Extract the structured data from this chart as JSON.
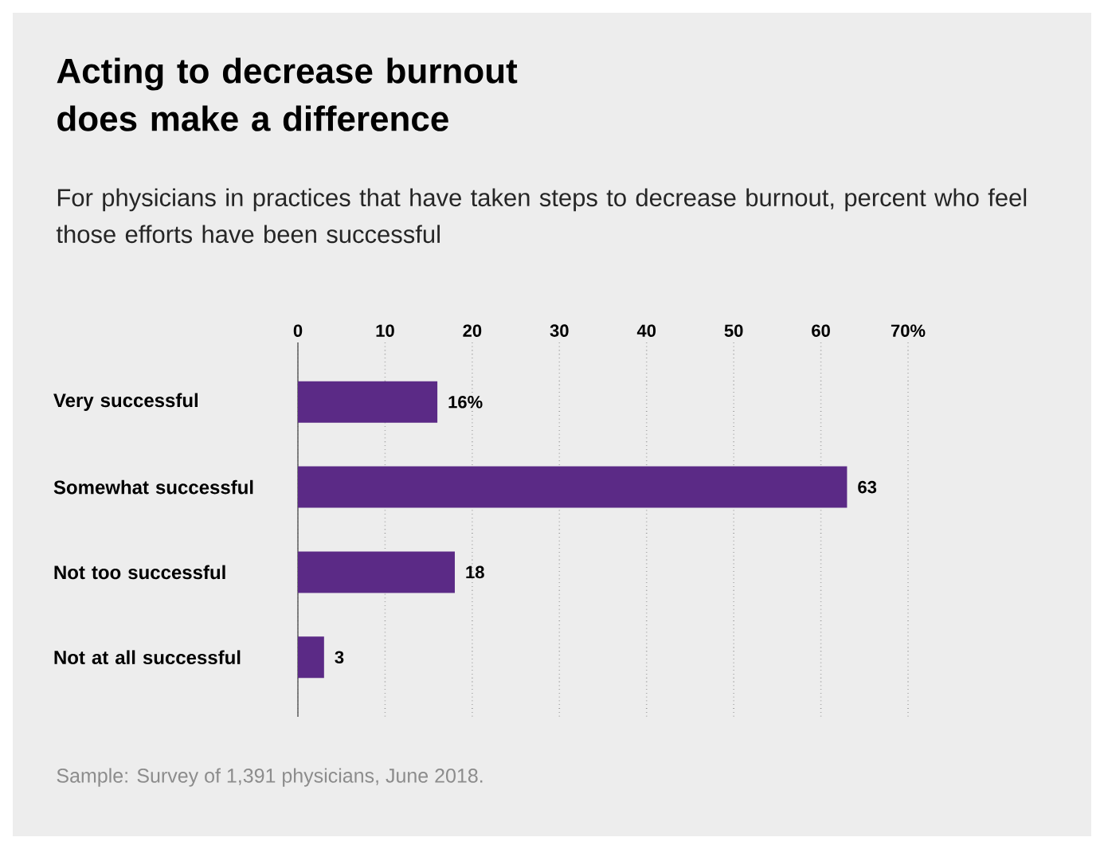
{
  "chart_data": {
    "type": "bar",
    "orientation": "horizontal",
    "title": "Acting to decrease burnout does make a difference",
    "subtitle": "For physicians in practices that have taken steps to decrease burnout, percent who feel those efforts have been successful",
    "categories": [
      "Very successful",
      "Somewhat successful",
      "Not too successful",
      "Not at all successful"
    ],
    "values": [
      16,
      63,
      18,
      3
    ],
    "value_labels": [
      "16%",
      "63",
      "18",
      "3"
    ],
    "color": "#5b2a86",
    "xlim": [
      0,
      70
    ],
    "xticks": [
      0,
      10,
      20,
      30,
      40,
      50,
      60,
      {
        "value": 70,
        "label": "70%"
      }
    ],
    "grid": "x",
    "annotations": [
      "Sample: Survey of 1,391 physicians, June 2018."
    ]
  }
}
